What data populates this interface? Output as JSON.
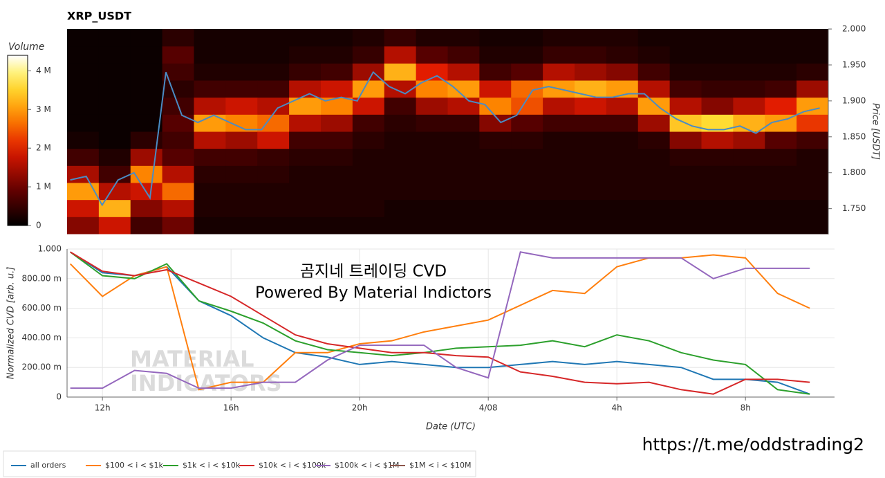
{
  "chart_data": [
    {
      "type": "heatmap",
      "title": "XRP_USDT",
      "ylabel": "Price [USDT]",
      "xlim": [
        10.9,
        34.77
      ],
      "ylim": [
        1.715,
        2.0
      ],
      "yticks": [
        {
          "value": 1.75,
          "label": "1.750"
        },
        {
          "value": 1.8,
          "label": "1.800"
        },
        {
          "value": 1.85,
          "label": "1.850"
        },
        {
          "value": 1.9,
          "label": "1.900"
        },
        {
          "value": 1.95,
          "label": "1.950"
        },
        {
          "value": 2.0,
          "label": "2.000"
        }
      ],
      "colorbar": {
        "label": "Volume",
        "clim": [
          0,
          4400000
        ],
        "ticks": [
          0,
          {
            "value": 1000000,
            "label": "1 M"
          },
          {
            "value": 2000000,
            "label": "2 M"
          },
          {
            "value": 3000000,
            "label": "3 M"
          },
          {
            "value": 4000000,
            "label": "4 M"
          }
        ]
      },
      "heatmap": {
        "columns": [
          [
            1200000,
            1800000,
            3000000,
            1500000,
            600000,
            200000,
            100000,
            100000,
            100000,
            100000,
            100000,
            100000
          ],
          [
            1800000,
            3200000,
            1600000,
            600000,
            300000,
            100000,
            100000,
            100000,
            100000,
            100000,
            100000,
            100000
          ],
          [
            600000,
            1200000,
            1800000,
            2800000,
            1400000,
            400000,
            100000,
            100000,
            100000,
            100000,
            100000,
            100000
          ],
          [
            1000000,
            1600000,
            2600000,
            1600000,
            800000,
            600000,
            800000,
            600000,
            400000,
            600000,
            800000,
            400000
          ],
          [
            200000,
            300000,
            300000,
            400000,
            600000,
            1600000,
            3000000,
            1600000,
            600000,
            300000,
            200000,
            200000
          ],
          [
            200000,
            300000,
            300000,
            400000,
            600000,
            1400000,
            2800000,
            1800000,
            600000,
            300000,
            200000,
            200000
          ],
          [
            200000,
            300000,
            300000,
            400000,
            500000,
            1800000,
            2600000,
            1600000,
            600000,
            300000,
            200000,
            200000
          ],
          [
            200000,
            300000,
            300000,
            300000,
            400000,
            600000,
            1600000,
            3000000,
            1600000,
            500000,
            300000,
            200000
          ],
          [
            200000,
            300000,
            300000,
            300000,
            400000,
            600000,
            1400000,
            2800000,
            1800000,
            600000,
            300000,
            200000
          ],
          [
            200000,
            300000,
            300000,
            300000,
            300000,
            400000,
            600000,
            1800000,
            3000000,
            1400000,
            500000,
            300000
          ],
          [
            200000,
            200000,
            300000,
            300000,
            300000,
            300000,
            400000,
            600000,
            1600000,
            3200000,
            1600000,
            500000
          ],
          [
            200000,
            200000,
            300000,
            300000,
            300000,
            300000,
            500000,
            1400000,
            2800000,
            2000000,
            800000,
            300000
          ],
          [
            200000,
            200000,
            300000,
            300000,
            300000,
            300000,
            500000,
            1600000,
            3000000,
            1600000,
            600000,
            300000
          ],
          [
            200000,
            200000,
            300000,
            300000,
            300000,
            400000,
            1200000,
            2800000,
            1800000,
            600000,
            300000,
            200000
          ],
          [
            200000,
            200000,
            300000,
            300000,
            300000,
            400000,
            800000,
            2400000,
            2600000,
            800000,
            300000,
            200000
          ],
          [
            200000,
            200000,
            300000,
            300000,
            300000,
            300000,
            600000,
            1600000,
            3000000,
            1600000,
            500000,
            300000
          ],
          [
            200000,
            200000,
            300000,
            300000,
            300000,
            300000,
            600000,
            1800000,
            3200000,
            1400000,
            500000,
            300000
          ],
          [
            200000,
            200000,
            300000,
            300000,
            300000,
            300000,
            600000,
            1600000,
            3000000,
            1200000,
            400000,
            300000
          ],
          [
            200000,
            200000,
            300000,
            300000,
            300000,
            400000,
            1400000,
            3000000,
            1600000,
            600000,
            300000,
            200000
          ],
          [
            200000,
            200000,
            300000,
            300000,
            400000,
            1200000,
            3400000,
            1600000,
            600000,
            300000,
            200000,
            200000
          ],
          [
            200000,
            200000,
            300000,
            300000,
            400000,
            1600000,
            3600000,
            1200000,
            500000,
            300000,
            200000,
            200000
          ],
          [
            200000,
            200000,
            300000,
            300000,
            400000,
            1400000,
            3200000,
            1600000,
            500000,
            300000,
            200000,
            200000
          ],
          [
            200000,
            200000,
            300000,
            300000,
            400000,
            800000,
            3000000,
            2000000,
            600000,
            300000,
            200000,
            200000
          ],
          [
            200000,
            200000,
            300000,
            300000,
            300000,
            600000,
            2200000,
            3000000,
            1400000,
            400000,
            200000,
            200000
          ]
        ]
      },
      "price": {
        "color": "#4a8cc4",
        "x": [
          11,
          11.5,
          12,
          12.5,
          13,
          13.5,
          14,
          14.5,
          15,
          15.5,
          16,
          16.5,
          17,
          17.5,
          18,
          18.5,
          19,
          19.5,
          20,
          20.5,
          21,
          21.5,
          22,
          22.5,
          23,
          23.5,
          24,
          24.5,
          25,
          25.5,
          26,
          26.5,
          27,
          27.5,
          28,
          28.5,
          29,
          29.5,
          30,
          30.5,
          31,
          31.5,
          32,
          32.5,
          33,
          33.5,
          34,
          34.5
        ],
        "values": [
          1.79,
          1.795,
          1.755,
          1.79,
          1.8,
          1.765,
          1.94,
          1.88,
          1.87,
          1.88,
          1.87,
          1.86,
          1.86,
          1.89,
          1.9,
          1.91,
          1.9,
          1.905,
          1.9,
          1.94,
          1.92,
          1.91,
          1.925,
          1.935,
          1.92,
          1.9,
          1.895,
          1.87,
          1.88,
          1.915,
          1.92,
          1.915,
          1.91,
          1.905,
          1.905,
          1.91,
          1.91,
          1.89,
          1.875,
          1.865,
          1.86,
          1.86,
          1.865,
          1.855,
          1.87,
          1.875,
          1.885,
          1.89
        ]
      }
    },
    {
      "type": "line",
      "ylabel": "Normalized CVD [arb. u.]",
      "xlabel": "Date (UTC)",
      "grid": true,
      "legend": "bottom-left",
      "xlim": [
        10.9,
        34.77
      ],
      "xticks": [
        {
          "value": 12,
          "label": "12h"
        },
        {
          "value": 16,
          "label": "16h"
        },
        {
          "value": 20,
          "label": "20h"
        },
        {
          "value": 24,
          "label": "4/08"
        },
        {
          "value": 28,
          "label": "4h"
        },
        {
          "value": 32,
          "label": "8h"
        }
      ],
      "ylim": [
        0,
        1
      ],
      "yticks": [
        0,
        {
          "value": 0.2,
          "label": "200.00 m"
        },
        {
          "value": 0.4,
          "label": "400.00 m"
        },
        {
          "value": 0.6,
          "label": "600.00 m"
        },
        {
          "value": 0.8,
          "label": "800.00 m"
        },
        {
          "value": 1,
          "label": "1.000"
        }
      ],
      "annotations": [
        "곰지네 트레이딩 CVD",
        "Powered By Material Indictors"
      ],
      "watermark": [
        "MATERIAL",
        "INDICATORS"
      ],
      "x": [
        11,
        12,
        13,
        14,
        15,
        16,
        17,
        18,
        19,
        20,
        21,
        22,
        23,
        24,
        25,
        26,
        27,
        28,
        29,
        30,
        31,
        32,
        33,
        34
      ],
      "series": [
        {
          "name": "all orders",
          "color": "#1f77b4",
          "values": [
            0.98,
            0.84,
            0.82,
            0.88,
            0.65,
            0.55,
            0.4,
            0.3,
            0.27,
            0.22,
            0.24,
            0.22,
            0.2,
            0.2,
            0.22,
            0.24,
            0.22,
            0.24,
            0.22,
            0.2,
            0.12,
            0.12,
            0.1,
            0.02
          ]
        },
        {
          "name": "$100 < i < $1k",
          "color": "#ff7f0e",
          "values": [
            0.9,
            0.68,
            0.82,
            0.88,
            0.05,
            0.1,
            0.1,
            0.3,
            0.3,
            0.36,
            0.38,
            0.44,
            0.48,
            0.52,
            0.62,
            0.72,
            0.7,
            0.88,
            0.94,
            0.94,
            0.96,
            0.94,
            0.7,
            0.6
          ]
        },
        {
          "name": "$1k < i < $10k",
          "color": "#2ca02c",
          "values": [
            0.98,
            0.82,
            0.8,
            0.9,
            0.65,
            0.58,
            0.5,
            0.38,
            0.32,
            0.3,
            0.28,
            0.3,
            0.33,
            0.34,
            0.35,
            0.38,
            0.34,
            0.42,
            0.38,
            0.3,
            0.25,
            0.22,
            0.05,
            0.02
          ]
        },
        {
          "name": "$10k < i < $100k",
          "color": "#d62728",
          "values": [
            0.98,
            0.85,
            0.82,
            0.86,
            0.77,
            0.68,
            0.55,
            0.42,
            0.36,
            0.33,
            0.3,
            0.3,
            0.28,
            0.27,
            0.17,
            0.14,
            0.1,
            0.09,
            0.1,
            0.05,
            0.02,
            0.12,
            0.12,
            0.1
          ]
        },
        {
          "name": "$100k < i < $1M",
          "color": "#9467bd",
          "values": [
            0.06,
            0.06,
            0.18,
            0.16,
            0.06,
            0.06,
            0.1,
            0.1,
            0.25,
            0.35,
            0.35,
            0.35,
            0.2,
            0.13,
            0.98,
            0.94,
            0.94,
            0.94,
            0.94,
            0.94,
            0.8,
            0.87,
            0.87,
            0.87
          ]
        },
        {
          "name": "$1M < i < $10M",
          "color": "#8c564b",
          "values": [
            null,
            null,
            null,
            null,
            null,
            null,
            null,
            null,
            null,
            null,
            null,
            null,
            null,
            null,
            null,
            null,
            null,
            null,
            null,
            null,
            null,
            null,
            null,
            null
          ]
        }
      ]
    }
  ],
  "footer": {
    "url": "https://t.me/oddstrading2"
  }
}
